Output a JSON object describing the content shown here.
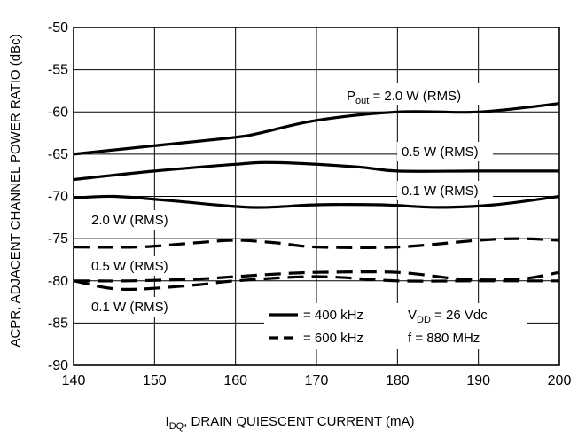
{
  "chart_data": {
    "type": "line",
    "title": "",
    "xlabel": {
      "prefix": "I",
      "sub": "DQ",
      "rest": ", DRAIN QUIESCENT CURRENT (mA)"
    },
    "ylabel": "ACPR, ADJACENT CHANNEL POWER RATIO (dBc)",
    "xlim": [
      140,
      200
    ],
    "ylim": [
      -90,
      -50
    ],
    "xticks": [
      140,
      150,
      160,
      170,
      180,
      190,
      200
    ],
    "yticks": [
      -90,
      -85,
      -80,
      -75,
      -70,
      -65,
      -60,
      -55,
      -50
    ],
    "grid": true,
    "series": [
      {
        "name": "2.0 W (RMS)",
        "style": "solid",
        "points": [
          [
            140,
            -65
          ],
          [
            150,
            -64
          ],
          [
            160,
            -63
          ],
          [
            163,
            -62.5
          ],
          [
            170,
            -61
          ],
          [
            180,
            -60
          ],
          [
            190,
            -60
          ],
          [
            200,
            -59
          ]
        ]
      },
      {
        "name": "0.5 W (RMS)",
        "style": "solid",
        "points": [
          [
            140,
            -68
          ],
          [
            150,
            -67
          ],
          [
            160,
            -66.2
          ],
          [
            165,
            -66
          ],
          [
            175,
            -66.5
          ],
          [
            180,
            -67
          ],
          [
            190,
            -67
          ],
          [
            200,
            -67
          ]
        ]
      },
      {
        "name": "0.1 W (RMS)",
        "style": "solid",
        "points": [
          [
            140,
            -70.2
          ],
          [
            145,
            -70
          ],
          [
            152,
            -70.5
          ],
          [
            162,
            -71.3
          ],
          [
            170,
            -71
          ],
          [
            178,
            -71
          ],
          [
            185,
            -71.3
          ],
          [
            192,
            -71
          ],
          [
            200,
            -70
          ]
        ]
      },
      {
        "name": "2.0 W (RMS)",
        "style": "dashed",
        "points": [
          [
            140,
            -76
          ],
          [
            148,
            -76
          ],
          [
            155,
            -75.5
          ],
          [
            160,
            -75.2
          ],
          [
            165,
            -75.5
          ],
          [
            170,
            -76
          ],
          [
            180,
            -76
          ],
          [
            190,
            -75.2
          ],
          [
            195,
            -75
          ],
          [
            200,
            -75.2
          ]
        ]
      },
      {
        "name": "0.5 W (RMS)",
        "style": "dashed",
        "points": [
          [
            140,
            -80
          ],
          [
            147,
            -80
          ],
          [
            155,
            -79.8
          ],
          [
            160,
            -79.5
          ],
          [
            165,
            -79.2
          ],
          [
            170,
            -79
          ],
          [
            180,
            -79
          ],
          [
            188,
            -79.8
          ],
          [
            195,
            -79.8
          ],
          [
            200,
            -79
          ]
        ]
      },
      {
        "name": "0.1 W (RMS)",
        "style": "dashed",
        "points": [
          [
            140,
            -80
          ],
          [
            146,
            -81
          ],
          [
            155,
            -80.5
          ],
          [
            160,
            -80
          ],
          [
            170,
            -79.5
          ],
          [
            180,
            -80
          ],
          [
            190,
            -80
          ],
          [
            200,
            -80
          ]
        ]
      }
    ],
    "annotations": {
      "pout_prefix": "P",
      "pout_sub": "out",
      "pout_rest": " = 2.0 W (RMS)",
      "solid_05": "0.5 W (RMS)",
      "solid_01": "0.1 W (RMS)",
      "dashed_20": "2.0 W (RMS)",
      "dashed_05": "0.5 W (RMS)",
      "dashed_01": "0.1 W (RMS)"
    },
    "legend": {
      "placement": "bottom-center",
      "items": [
        {
          "style": "solid",
          "label": "= 400 kHz"
        },
        {
          "style": "dashed",
          "label": "= 600 kHz"
        }
      ]
    },
    "conditions": {
      "vdd_prefix": "V",
      "vdd_sub": "DD",
      "vdd_rest": " = 26 Vdc",
      "freq": "f = 880 MHz"
    }
  }
}
